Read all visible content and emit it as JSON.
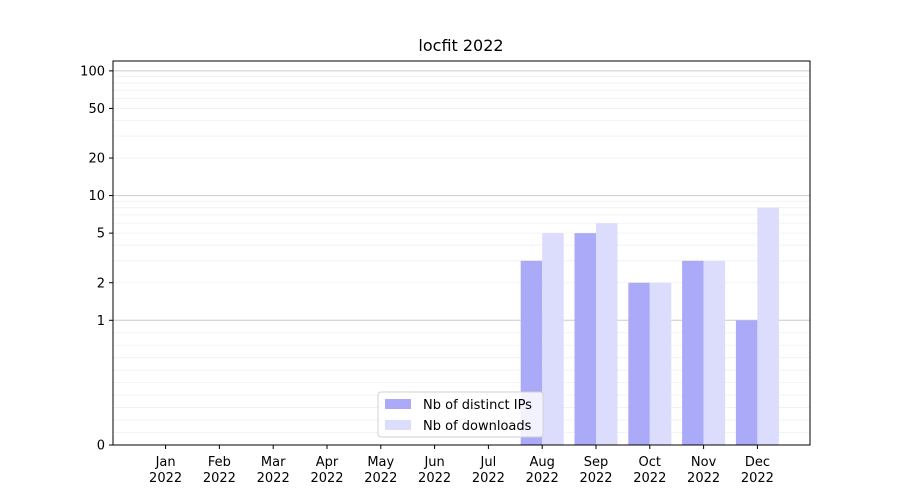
{
  "chart_data": {
    "type": "bar",
    "title": "locfit 2022",
    "xlabel": "",
    "ylabel": "",
    "y_scale": "symlog",
    "ylim": [
      0,
      120
    ],
    "y_ticks": [
      0,
      1,
      2,
      5,
      10,
      20,
      50,
      100
    ],
    "categories": [
      [
        "Jan",
        "2022"
      ],
      [
        "Feb",
        "2022"
      ],
      [
        "Mar",
        "2022"
      ],
      [
        "Apr",
        "2022"
      ],
      [
        "May",
        "2022"
      ],
      [
        "Jun",
        "2022"
      ],
      [
        "Jul",
        "2022"
      ],
      [
        "Aug",
        "2022"
      ],
      [
        "Sep",
        "2022"
      ],
      [
        "Oct",
        "2022"
      ],
      [
        "Nov",
        "2022"
      ],
      [
        "Dec",
        "2022"
      ]
    ],
    "series": [
      {
        "name": "Nb of distinct IPs",
        "color": "#aaaaf8",
        "values": [
          0,
          0,
          0,
          0,
          0,
          0,
          0,
          3,
          5,
          2,
          3,
          1
        ]
      },
      {
        "name": "Nb of downloads",
        "color": "#dcdcfc",
        "values": [
          0,
          0,
          0,
          0,
          0,
          0,
          0,
          5,
          6,
          2,
          3,
          8
        ]
      }
    ],
    "grid": "y (major and minor)",
    "legend_position": "lower center"
  }
}
